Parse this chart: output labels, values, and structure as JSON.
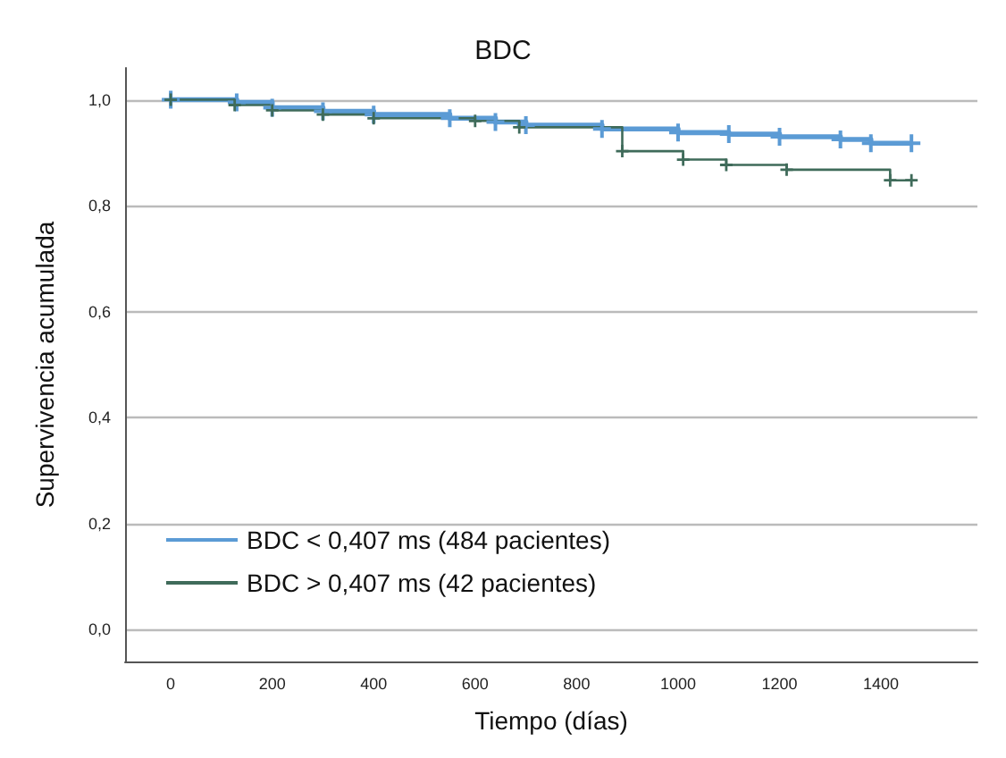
{
  "chart_data": {
    "type": "step",
    "title": "BDC",
    "xlabel": "Tiempo (días)",
    "ylabel": "Supervivencia acumulada",
    "xlim": [
      -90,
      1590
    ],
    "xticks": [
      0,
      200,
      400,
      600,
      800,
      1000,
      1200,
      1400
    ],
    "ylim": [
      -0.06,
      1.06
    ],
    "yticks": [
      {
        "value": 0,
        "label": "0,0"
      },
      {
        "value": 0.2,
        "label": "0,2"
      },
      {
        "value": 0.4,
        "label": "0,4"
      },
      {
        "value": 0.6,
        "label": "0,6"
      },
      {
        "value": 0.8,
        "label": "0,8"
      },
      {
        "value": 1,
        "label": "1,0"
      }
    ],
    "grid": "y",
    "legend": "bottom left",
    "marker": "cross",
    "line_style": "solid",
    "series": [
      {
        "name": "BDC < 0,407 ms (484 pacientes)",
        "color": "#5b9bd5",
        "x": [
          0,
          130,
          200,
          300,
          400,
          550,
          640,
          700,
          850,
          1000,
          1100,
          1200,
          1320,
          1380,
          1460
        ],
        "values": [
          1,
          0.995,
          0.985,
          0.978,
          0.972,
          0.965,
          0.958,
          0.952,
          0.945,
          0.938,
          0.935,
          0.93,
          0.925,
          0.918,
          0.918
        ]
      },
      {
        "name": "BDC > 0,407 ms (42 pacientes)",
        "color": "#3f6b5a",
        "x": [
          0,
          126,
          200,
          300,
          400,
          600,
          687,
          890,
          1010,
          1095,
          1214,
          1418,
          1460
        ],
        "values": [
          1,
          0.99,
          0.98,
          0.972,
          0.965,
          0.96,
          0.948,
          0.903,
          0.887,
          0.877,
          0.868,
          0.848,
          0.848
        ]
      }
    ]
  }
}
